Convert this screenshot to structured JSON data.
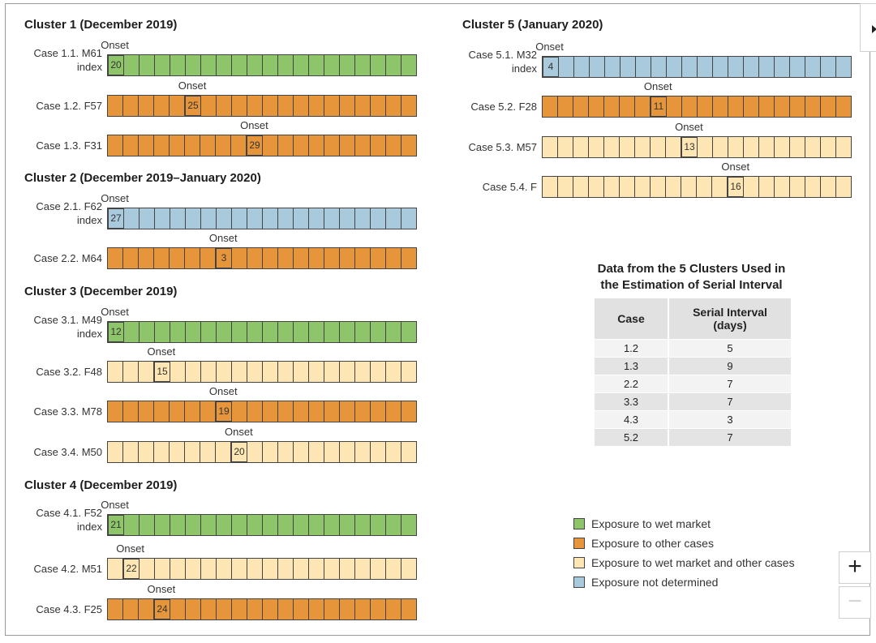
{
  "onset_label": "Onset",
  "index_label": "index",
  "colors": {
    "green": "#8fc56a",
    "orange": "#e7953a",
    "light": "#fde6b3",
    "blue": "#a9c9dd"
  },
  "clusters": [
    {
      "title": "Cluster 1 (December 2019)",
      "cases": [
        {
          "label": "Case 1.1. M61",
          "index": true,
          "exposure": "green",
          "onset_cell": 0,
          "onset_day": "20"
        },
        {
          "label": "Case 1.2. F57",
          "index": false,
          "exposure": "orange",
          "onset_cell": 5,
          "onset_day": "25"
        },
        {
          "label": "Case 1.3. F31",
          "index": false,
          "exposure": "orange",
          "onset_cell": 9,
          "onset_day": "29"
        }
      ]
    },
    {
      "title": "Cluster 2 (December 2019–January 2020)",
      "cases": [
        {
          "label": "Case 2.1. F62",
          "index": true,
          "exposure": "blue",
          "onset_cell": 0,
          "onset_day": "27"
        },
        {
          "label": "Case 2.2. M64",
          "index": false,
          "exposure": "orange",
          "onset_cell": 7,
          "onset_day": "3"
        }
      ]
    },
    {
      "title": "Cluster 3 (December 2019)",
      "cases": [
        {
          "label": "Case 3.1. M49",
          "index": true,
          "exposure": "green",
          "onset_cell": 0,
          "onset_day": "12"
        },
        {
          "label": "Case 3.2. F48",
          "index": false,
          "exposure": "light",
          "onset_cell": 3,
          "onset_day": "15"
        },
        {
          "label": "Case 3.3. M78",
          "index": false,
          "exposure": "orange",
          "onset_cell": 7,
          "onset_day": "19"
        },
        {
          "label": "Case 3.4. M50",
          "index": false,
          "exposure": "light",
          "onset_cell": 8,
          "onset_day": "20"
        }
      ]
    },
    {
      "title": "Cluster 4 (December 2019)",
      "cases": [
        {
          "label": "Case 4.1. F52",
          "index": true,
          "exposure": "green",
          "onset_cell": 0,
          "onset_day": "21"
        },
        {
          "label": "Case 4.2. M51",
          "index": false,
          "exposure": "light",
          "onset_cell": 1,
          "onset_day": "22"
        },
        {
          "label": "Case 4.3. F25",
          "index": false,
          "exposure": "orange",
          "onset_cell": 3,
          "onset_day": "24"
        }
      ]
    },
    {
      "title": "Cluster 5 (January 2020)",
      "cases": [
        {
          "label": "Case 5.1. M32",
          "index": true,
          "exposure": "blue",
          "onset_cell": 0,
          "onset_day": "4"
        },
        {
          "label": "Case 5.2. F28",
          "index": false,
          "exposure": "orange",
          "onset_cell": 7,
          "onset_day": "11"
        },
        {
          "label": "Case 5.3. M57",
          "index": false,
          "exposure": "light",
          "onset_cell": 9,
          "onset_day": "13"
        },
        {
          "label": "Case 5.4. F",
          "index": false,
          "exposure": "light",
          "onset_cell": 12,
          "onset_day": "16"
        }
      ]
    }
  ],
  "table": {
    "title_line1": "Data from the 5 Clusters Used in",
    "title_line2": "the Estimation of Serial Interval",
    "col_case": "Case",
    "col_interval_line1": "Serial Interval",
    "col_interval_line2": "(days)",
    "rows": [
      {
        "case": "1.2",
        "interval": "5"
      },
      {
        "case": "1.3",
        "interval": "9"
      },
      {
        "case": "2.2",
        "interval": "7"
      },
      {
        "case": "3.3",
        "interval": "7"
      },
      {
        "case": "4.3",
        "interval": "3"
      },
      {
        "case": "5.2",
        "interval": "7"
      }
    ]
  },
  "legend": [
    {
      "color": "green",
      "label": "Exposure to wet market"
    },
    {
      "color": "orange",
      "label": "Exposure to other cases"
    },
    {
      "color": "light",
      "label": "Exposure to wet market and other cases"
    },
    {
      "color": "blue",
      "label": "Exposure not determined"
    }
  ],
  "controls": {
    "zoom_in": "+",
    "zoom_out": "−"
  }
}
